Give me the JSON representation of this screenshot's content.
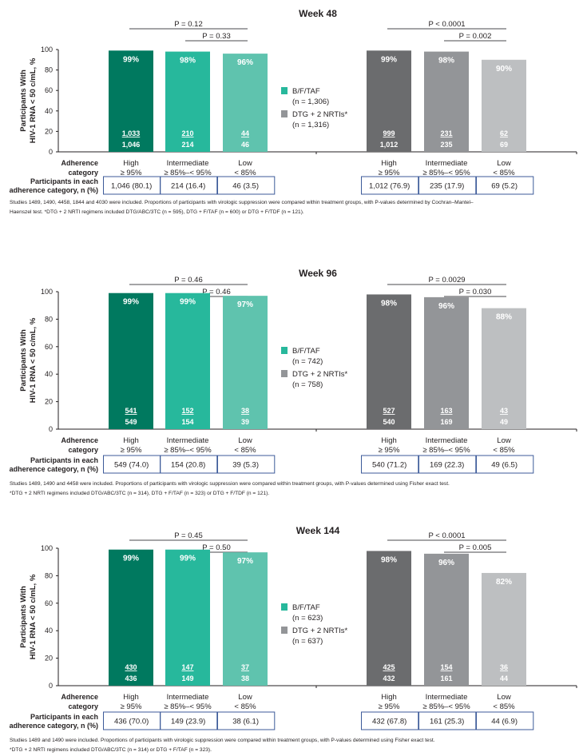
{
  "colors": {
    "bftaf": [
      "#00795f",
      "#27b89c",
      "#5fc3ae"
    ],
    "dtg": [
      "#6b6c6e",
      "#939598",
      "#bdbfc1"
    ],
    "legend_bftaf": "#27b89c",
    "legend_dtg": "#939598",
    "table_border": "#3c5a99",
    "bracket": "#6d6e70"
  },
  "y_axis_label": [
    "Participants With",
    "HIV-1 RNA < 50 c/mL, %"
  ],
  "x_axis_title": [
    "Adherence",
    "category"
  ],
  "table_row_label": [
    "Participants in each",
    "adherence category, n (%)"
  ],
  "chart_data": [
    {
      "type": "bar",
      "title": "Week 48",
      "ylim": [
        0,
        100
      ],
      "yticks": [
        "0",
        "20",
        "40",
        "60",
        "80",
        "100"
      ],
      "categories": [
        [
          "High",
          "≥ 95%"
        ],
        [
          "Intermediate",
          "≥ 85%–< 95%"
        ],
        [
          "Low",
          "< 85%"
        ]
      ],
      "series": [
        {
          "name": "B/F/TAF",
          "n_label": "(n = 1,306)",
          "values": [
            99,
            98,
            96
          ],
          "value_labels": [
            "99%",
            "98%",
            "96%"
          ],
          "responders": [
            "1,033",
            "210",
            "44"
          ],
          "totals": [
            "1,046",
            "214",
            "46"
          ],
          "table": [
            "1,046 (80.1)",
            "214 (16.4)",
            "46 (3.5)"
          ],
          "p_values": [
            "P = 0.12",
            "P = 0.33"
          ]
        },
        {
          "name": "DTG + 2 NRTIs*",
          "n_label": "(n = 1,316)",
          "values": [
            99,
            98,
            90
          ],
          "value_labels": [
            "99%",
            "98%",
            "90%"
          ],
          "responders": [
            "999",
            "231",
            "62"
          ],
          "totals": [
            "1,012",
            "235",
            "69"
          ],
          "table": [
            "1,012 (76.9)",
            "235 (17.9)",
            "69 (5.2)"
          ],
          "p_values": [
            "P < 0.0001",
            "P = 0.002"
          ]
        }
      ],
      "footnote": [
        "Studies 1489, 1490, 4458, 1844 and 4030 were included. Proportions of participants with virologic suppression were compared within treatment groups, with P-values determined by Cochran–Mantel–",
        "Haenszel test. *DTG + 2 NRTI regimens included DTG/ABC/3TC (n = 595), DTG + F/TAF (n = 600) or DTG + F/TDF (n = 121)."
      ]
    },
    {
      "type": "bar",
      "title": "Week 96",
      "ylim": [
        0,
        100
      ],
      "yticks": [
        "0",
        "20",
        "40",
        "60",
        "80",
        "100"
      ],
      "categories": [
        [
          "High",
          "≥ 95%"
        ],
        [
          "Intermediate",
          "≥ 85%–< 95%"
        ],
        [
          "Low",
          "< 85%"
        ]
      ],
      "series": [
        {
          "name": "B/F/TAF",
          "n_label": "(n = 742)",
          "values": [
            99,
            99,
            97
          ],
          "value_labels": [
            "99%",
            "99%",
            "97%"
          ],
          "responders": [
            "541",
            "152",
            "38"
          ],
          "totals": [
            "549",
            "154",
            "39"
          ],
          "table": [
            "549 (74.0)",
            "154 (20.8)",
            "39 (5.3)"
          ],
          "p_values": [
            "P = 0.46",
            "P = 0.46"
          ]
        },
        {
          "name": "DTG + 2 NRTIs*",
          "n_label": "(n = 758)",
          "values": [
            98,
            96,
            88
          ],
          "value_labels": [
            "98%",
            "96%",
            "88%"
          ],
          "responders": [
            "527",
            "163",
            "43"
          ],
          "totals": [
            "540",
            "169",
            "49"
          ],
          "table": [
            "540 (71.2)",
            "169 (22.3)",
            "49 (6.5)"
          ],
          "p_values": [
            "P = 0.0029",
            "P = 0.030"
          ]
        }
      ],
      "footnote": [
        "Studies 1489, 1490 and 4458 were included. Proportions of participants with virologic suppression were compared within treatment groups, with P-values determined using Fisher exact test.",
        "*DTG + 2 NRTI regimens included DTG/ABC/3TC (n = 314), DTG + F/TAF (n = 323) or DTG + F/TDF (n = 121)."
      ]
    },
    {
      "type": "bar",
      "title": "Week 144",
      "ylim": [
        0,
        100
      ],
      "yticks": [
        "0",
        "20",
        "40",
        "60",
        "80",
        "100"
      ],
      "categories": [
        [
          "High",
          "≥ 95%"
        ],
        [
          "Intermediate",
          "≥ 85%–< 95%"
        ],
        [
          "Low",
          "< 85%"
        ]
      ],
      "series": [
        {
          "name": "B/F/TAF",
          "n_label": "(n = 623)",
          "values": [
            99,
            99,
            97
          ],
          "value_labels": [
            "99%",
            "99%",
            "97%"
          ],
          "responders": [
            "430",
            "147",
            "37"
          ],
          "totals": [
            "436",
            "149",
            "38"
          ],
          "table": [
            "436 (70.0)",
            "149 (23.9)",
            "38 (6.1)"
          ],
          "p_values": [
            "P = 0.45",
            "P = 0.50"
          ]
        },
        {
          "name": "DTG + 2 NRTIs*",
          "n_label": "(n = 637)",
          "values": [
            98,
            96,
            82
          ],
          "value_labels": [
            "98%",
            "96%",
            "82%"
          ],
          "responders": [
            "425",
            "154",
            "36"
          ],
          "totals": [
            "432",
            "161",
            "44"
          ],
          "table": [
            "432 (67.8)",
            "161 (25.3)",
            "44 (6.9)"
          ],
          "p_values": [
            "P < 0.0001",
            "P = 0.005"
          ]
        }
      ],
      "footnote": [
        "Studies 1489 and 1490 were included. Proportions of participants with virologic suppression were compared within treatment groups, with P-values determined using Fisher exact test.",
        "*DTG + 2 NRTI regimens included DTG/ABC/3TC (n = 314) or DTG + F/TAF (n = 323)."
      ]
    }
  ]
}
